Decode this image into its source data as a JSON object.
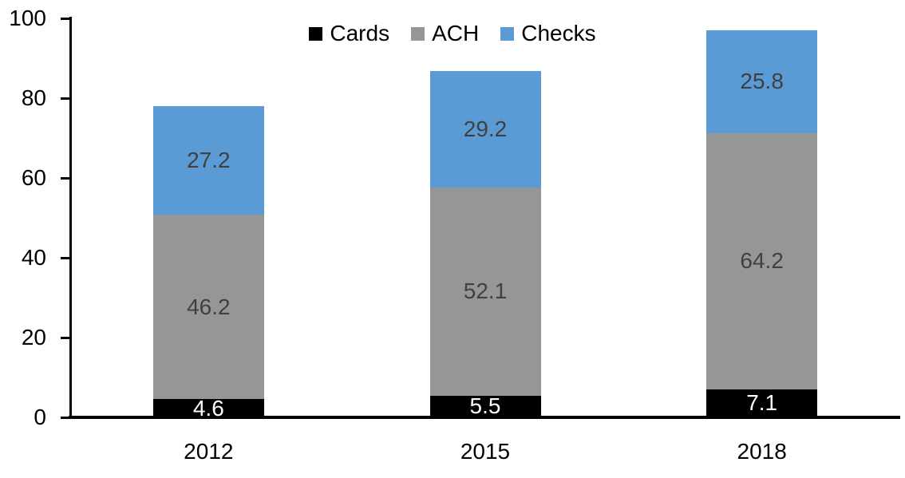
{
  "chart_data": {
    "type": "bar",
    "stacked": true,
    "title": "",
    "xlabel": "",
    "ylabel": "",
    "categories": [
      "2012",
      "2015",
      "2018"
    ],
    "series": [
      {
        "name": "Cards",
        "color": "#000000",
        "label_color": "#ffffff",
        "values": [
          4.6,
          5.5,
          7.1
        ]
      },
      {
        "name": "ACH",
        "color": "#969696",
        "label_color": "#404040",
        "values": [
          46.2,
          52.1,
          64.2
        ]
      },
      {
        "name": "Checks",
        "color": "#5b9bd5",
        "label_color": "#404040",
        "values": [
          27.2,
          29.2,
          25.8
        ]
      }
    ],
    "totals": [
      78.0,
      86.8,
      97.1
    ],
    "ylim": [
      0,
      100
    ],
    "yticks": [
      0,
      20,
      40,
      60,
      80,
      100
    ],
    "legend_position": "top-center",
    "legend_entries": [
      "Cards",
      "ACH",
      "Checks"
    ],
    "grid": false,
    "axis_color": "#000000",
    "background": "#ffffff"
  }
}
